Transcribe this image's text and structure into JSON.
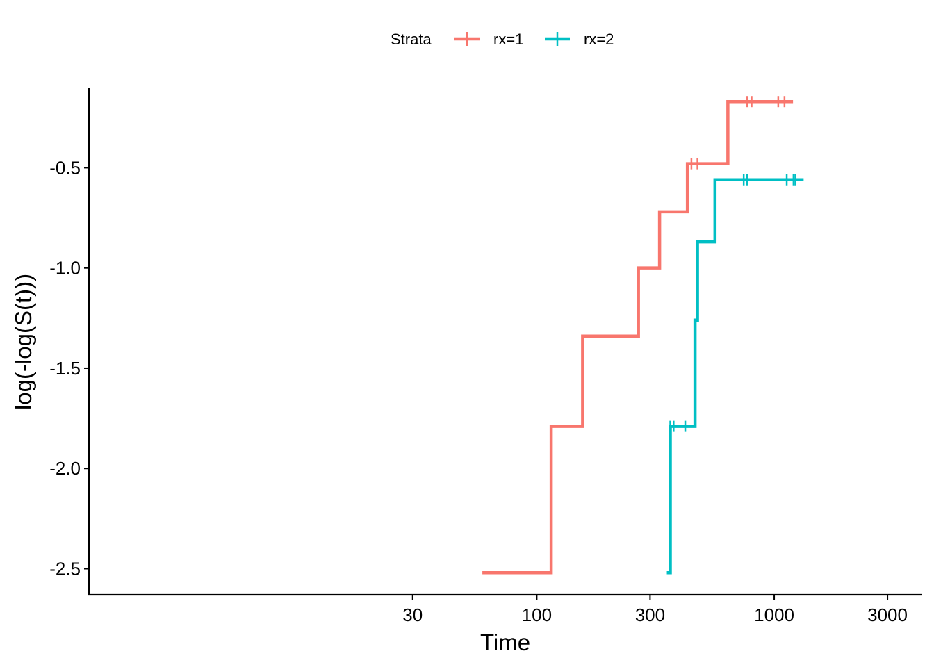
{
  "chart_data": {
    "type": "line",
    "step": true,
    "xlabel": "Time",
    "ylabel": "log(-log(S(t)))",
    "x_scale": "log10",
    "xlim": [
      1.3,
      4200
    ],
    "ylim": [
      -2.63,
      -0.1
    ],
    "x_ticks": [
      30,
      100,
      300,
      1000,
      3000
    ],
    "x_tick_labels": [
      "30",
      "100",
      "300",
      "1000",
      "3000"
    ],
    "y_ticks": [
      -0.5,
      -1.0,
      -1.5,
      -2.0,
      -2.5
    ],
    "y_tick_labels": [
      "-0.5",
      "-1.0",
      "-1.5",
      "-2.0",
      "-2.5"
    ],
    "grid": false,
    "legend": {
      "title": "Strata",
      "position": "top",
      "entries": [
        {
          "label": "rx=1",
          "color": "#F8766D"
        },
        {
          "label": "rx=2",
          "color": "#00BFC4"
        }
      ]
    },
    "series": [
      {
        "name": "rx=1",
        "color": "#F8766D",
        "x": [
          59,
          115,
          156,
          268,
          329,
          431,
          638,
          1200
        ],
        "y": [
          -2.52,
          -1.79,
          -1.34,
          -1.0,
          -0.72,
          -0.48,
          -0.17,
          -0.17
        ],
        "censored": [
          {
            "x": 448,
            "y": -0.48
          },
          {
            "x": 475,
            "y": -0.48
          },
          {
            "x": 770,
            "y": -0.17
          },
          {
            "x": 803,
            "y": -0.17
          },
          {
            "x": 1040,
            "y": -0.17
          },
          {
            "x": 1105,
            "y": -0.17
          }
        ]
      },
      {
        "name": "rx=2",
        "color": "#00BFC4",
        "x": [
          353,
          365,
          464,
          475,
          563,
          1330
        ],
        "y": [
          -2.52,
          -1.79,
          -1.26,
          -0.87,
          -0.56,
          -0.56
        ],
        "censored": [
          {
            "x": 365,
            "y": -1.79
          },
          {
            "x": 377,
            "y": -1.79
          },
          {
            "x": 422,
            "y": -1.79
          },
          {
            "x": 744,
            "y": -0.56
          },
          {
            "x": 769,
            "y": -0.56
          },
          {
            "x": 1129,
            "y": -0.56
          },
          {
            "x": 1206,
            "y": -0.56
          },
          {
            "x": 1227,
            "y": -0.56
          }
        ]
      }
    ]
  }
}
